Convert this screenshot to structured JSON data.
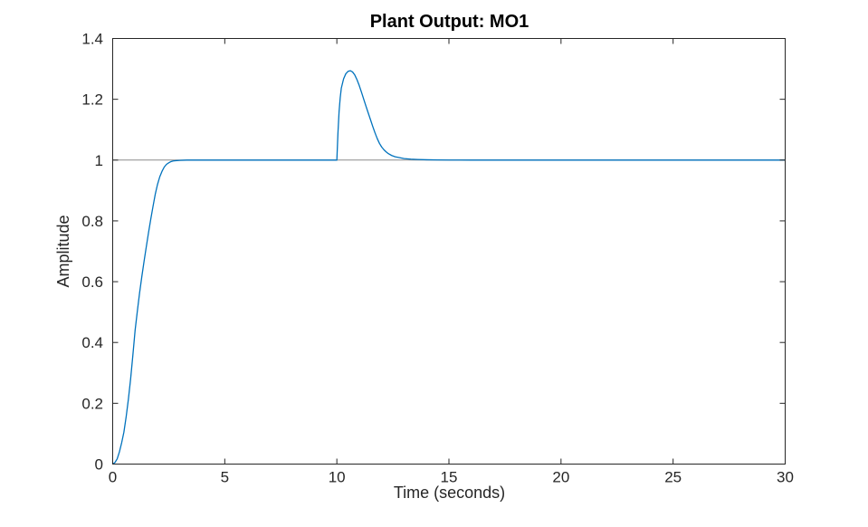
{
  "figure": {
    "background": "#ffffff"
  },
  "chart_data": {
    "type": "line",
    "title": "Plant Output: MO1",
    "xlabel": "Time (seconds)",
    "ylabel": "Amplitude",
    "xlim": [
      0,
      30
    ],
    "ylim": [
      0,
      1.4
    ],
    "x_ticks": [
      0,
      5,
      10,
      15,
      20,
      25,
      30
    ],
    "y_ticks": [
      0,
      0.2,
      0.4,
      0.6,
      0.8,
      1,
      1.2,
      1.4
    ],
    "grid": false,
    "box": true,
    "legend": "none",
    "axes_color": "#262626",
    "tick_length": 6,
    "series": [
      {
        "name": "reference-line",
        "color": "#8c8c8c",
        "width": 1,
        "points": [
          [
            0,
            1
          ],
          [
            30,
            1
          ]
        ]
      },
      {
        "name": "plant-output",
        "color": "#0072BD",
        "width": 1.3,
        "points": [
          [
            0,
            0
          ],
          [
            0.1,
            0.005
          ],
          [
            0.2,
            0.017
          ],
          [
            0.3,
            0.04
          ],
          [
            0.4,
            0.07
          ],
          [
            0.5,
            0.105
          ],
          [
            0.6,
            0.155
          ],
          [
            0.7,
            0.213
          ],
          [
            0.8,
            0.28
          ],
          [
            0.9,
            0.358
          ],
          [
            1,
            0.44
          ],
          [
            1.1,
            0.503
          ],
          [
            1.2,
            0.563
          ],
          [
            1.3,
            0.617
          ],
          [
            1.4,
            0.667
          ],
          [
            1.5,
            0.715
          ],
          [
            1.6,
            0.762
          ],
          [
            1.7,
            0.806
          ],
          [
            1.8,
            0.848
          ],
          [
            1.9,
            0.888
          ],
          [
            2,
            0.92
          ],
          [
            2.1,
            0.945
          ],
          [
            2.2,
            0.963
          ],
          [
            2.3,
            0.977
          ],
          [
            2.4,
            0.986
          ],
          [
            2.5,
            0.991
          ],
          [
            2.6,
            0.995
          ],
          [
            2.7,
            0.997
          ],
          [
            2.8,
            0.998
          ],
          [
            3,
            0.999
          ],
          [
            3.3,
            1
          ],
          [
            4,
            1
          ],
          [
            5,
            1
          ],
          [
            6,
            1
          ],
          [
            7,
            1
          ],
          [
            8,
            1
          ],
          [
            9,
            1
          ],
          [
            9.95,
            1
          ],
          [
            10,
            1
          ],
          [
            10.05,
            1.09
          ],
          [
            10.1,
            1.16
          ],
          [
            10.15,
            1.205
          ],
          [
            10.2,
            1.237
          ],
          [
            10.3,
            1.267
          ],
          [
            10.4,
            1.284
          ],
          [
            10.5,
            1.292
          ],
          [
            10.6,
            1.294
          ],
          [
            10.7,
            1.29
          ],
          [
            10.8,
            1.28
          ],
          [
            10.9,
            1.264
          ],
          [
            11,
            1.245
          ],
          [
            11.1,
            1.223
          ],
          [
            11.2,
            1.2
          ],
          [
            11.3,
            1.177
          ],
          [
            11.4,
            1.155
          ],
          [
            11.5,
            1.133
          ],
          [
            11.6,
            1.111
          ],
          [
            11.7,
            1.09
          ],
          [
            11.8,
            1.071
          ],
          [
            11.9,
            1.055
          ],
          [
            12,
            1.043
          ],
          [
            12.1,
            1.034
          ],
          [
            12.2,
            1.027
          ],
          [
            12.3,
            1.021
          ],
          [
            12.45,
            1.015
          ],
          [
            12.6,
            1.011
          ],
          [
            12.8,
            1.008
          ],
          [
            13,
            1.005
          ],
          [
            13.3,
            1.003
          ],
          [
            13.6,
            1.002
          ],
          [
            14,
            1.001
          ],
          [
            14.5,
            1.0005
          ],
          [
            15,
            1.0002
          ],
          [
            16,
            1
          ],
          [
            18,
            1
          ],
          [
            20,
            1
          ],
          [
            22,
            1
          ],
          [
            24,
            1
          ],
          [
            26,
            1
          ],
          [
            28,
            1
          ],
          [
            30,
            1
          ]
        ]
      }
    ]
  }
}
